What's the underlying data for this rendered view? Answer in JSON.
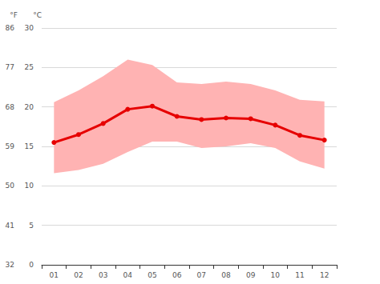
{
  "chart_data": {
    "type": "line",
    "categories": [
      "01",
      "02",
      "03",
      "04",
      "05",
      "06",
      "07",
      "08",
      "09",
      "10",
      "11",
      "12"
    ],
    "series": [
      {
        "type": "line",
        "color": "#e60000",
        "marker": "circle",
        "values": [
          15.5,
          16.5,
          17.9,
          19.7,
          20.1,
          18.8,
          18.4,
          18.6,
          18.5,
          17.7,
          16.4,
          15.8
        ]
      },
      {
        "type": "band",
        "color": "#ffb3b3",
        "low": [
          11.6,
          12.0,
          12.8,
          14.3,
          15.6,
          15.6,
          14.8,
          15.0,
          15.4,
          14.8,
          13.1,
          12.2
        ],
        "high": [
          20.6,
          22.1,
          23.9,
          26.0,
          25.3,
          23.1,
          22.9,
          23.2,
          22.9,
          22.1,
          20.9,
          20.7
        ]
      }
    ],
    "y_label": "°C",
    "ylim": [
      0,
      30
    ],
    "yticks": [
      0,
      5,
      10,
      15,
      20,
      25,
      30
    ],
    "y2_label": "°F",
    "y2lim": [
      32,
      86
    ],
    "y2ticks": [
      32,
      41,
      50,
      59,
      68,
      77,
      86
    ],
    "grid": true
  }
}
